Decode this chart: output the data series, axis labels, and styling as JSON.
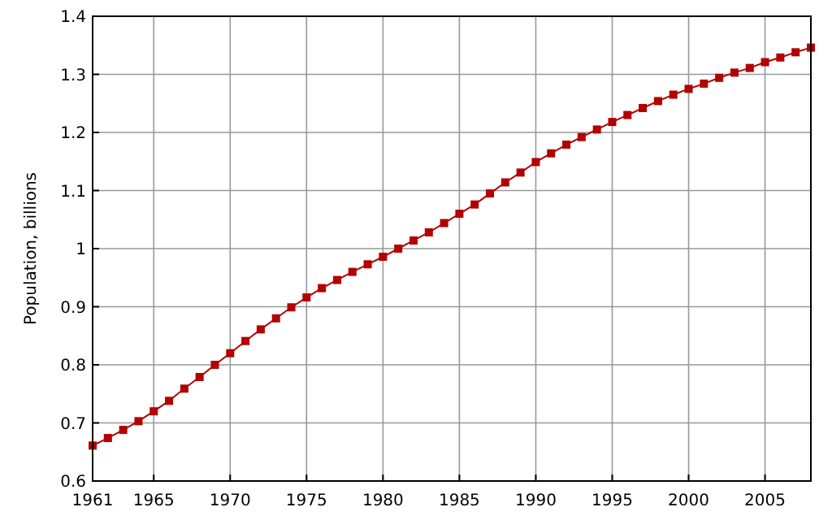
{
  "chart_data": {
    "type": "line",
    "ylabel": "Population, billions",
    "x": [
      1961,
      1962,
      1963,
      1964,
      1965,
      1966,
      1967,
      1968,
      1969,
      1970,
      1971,
      1972,
      1973,
      1974,
      1975,
      1976,
      1977,
      1978,
      1979,
      1980,
      1981,
      1982,
      1983,
      1984,
      1985,
      1986,
      1987,
      1988,
      1989,
      1990,
      1991,
      1992,
      1993,
      1994,
      1995,
      1996,
      1997,
      1998,
      1999,
      2000,
      2001,
      2002,
      2003,
      2004,
      2005,
      2006,
      2007,
      2008
    ],
    "series": [
      {
        "color": "#b30000",
        "values": [
          0.661,
          0.674,
          0.688,
          0.703,
          0.72,
          0.738,
          0.759,
          0.779,
          0.8,
          0.82,
          0.841,
          0.861,
          0.88,
          0.899,
          0.916,
          0.932,
          0.946,
          0.96,
          0.973,
          0.986,
          1.0,
          1.014,
          1.028,
          1.044,
          1.06,
          1.076,
          1.095,
          1.114,
          1.131,
          1.149,
          1.164,
          1.179,
          1.192,
          1.205,
          1.218,
          1.23,
          1.242,
          1.254,
          1.265,
          1.275,
          1.284,
          1.294,
          1.303,
          1.311,
          1.321,
          1.329,
          1.338,
          1.346
        ]
      }
    ],
    "xlim": [
      1961,
      2008
    ],
    "xticks": [
      1961,
      1965,
      1970,
      1975,
      1980,
      1985,
      1990,
      1995,
      2000,
      2005
    ],
    "ylim": [
      0.6,
      1.4
    ],
    "yticks": [
      0.6,
      0.7,
      0.8,
      0.9,
      1,
      1.1,
      1.2,
      1.3,
      1.4
    ],
    "grid": true,
    "marker": "square",
    "line_style": "solid"
  }
}
